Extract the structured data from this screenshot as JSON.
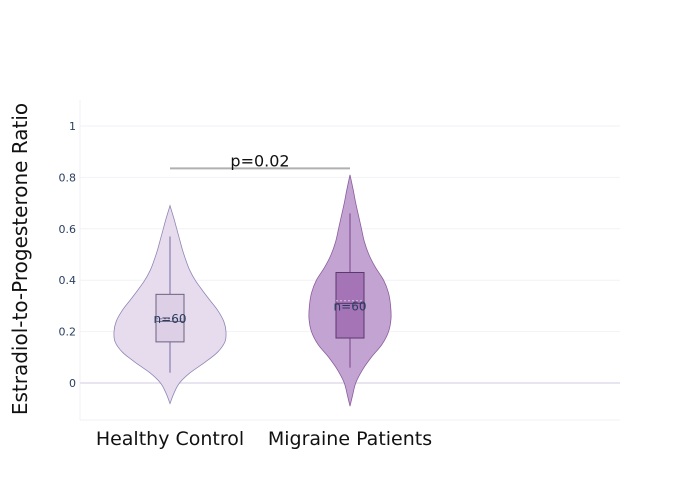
{
  "chart_data": {
    "type": "violin",
    "ylabel": "Estradiol-to-Progesterone Ratio",
    "ylim": [
      -0.14,
      1.1
    ],
    "yticks": [
      0,
      0.2,
      0.4,
      0.6,
      0.8,
      1
    ],
    "ytick_labels": [
      "0",
      "0.2",
      "0.4",
      "0.6",
      "0.8",
      "1"
    ],
    "categories": [
      "Healthy Control",
      "Migraine Patients"
    ],
    "grid": true,
    "series": [
      {
        "category": "Healthy Control",
        "fill_color": "#e7dced",
        "line_color": "#8f86b5",
        "box_fill": "#ddd0e6",
        "violin_range": [
          -0.08,
          0.69
        ],
        "density_profile": [
          [
            -0.08,
            0.0
          ],
          [
            -0.04,
            0.07
          ],
          [
            0.0,
            0.17
          ],
          [
            0.04,
            0.36
          ],
          [
            0.08,
            0.62
          ],
          [
            0.12,
            0.85
          ],
          [
            0.16,
            0.98
          ],
          [
            0.2,
            1.0
          ],
          [
            0.24,
            0.96
          ],
          [
            0.28,
            0.86
          ],
          [
            0.32,
            0.72
          ],
          [
            0.36,
            0.58
          ],
          [
            0.4,
            0.45
          ],
          [
            0.44,
            0.35
          ],
          [
            0.48,
            0.28
          ],
          [
            0.52,
            0.22
          ],
          [
            0.56,
            0.17
          ],
          [
            0.6,
            0.12
          ],
          [
            0.64,
            0.07
          ],
          [
            0.69,
            0.0
          ]
        ],
        "whisker_low": 0.04,
        "q1": 0.16,
        "median": 0.24,
        "mean": 0.25,
        "q3": 0.345,
        "whisker_high": 0.57,
        "n_label": "n=60"
      },
      {
        "category": "Migraine Patients",
        "fill_color": "#c3a3d1",
        "line_color": "#8a5c9c",
        "box_fill": "#a474b6",
        "violin_range": [
          -0.09,
          0.81
        ],
        "density_profile": [
          [
            -0.09,
            0.0
          ],
          [
            -0.05,
            0.06
          ],
          [
            0.0,
            0.14
          ],
          [
            0.05,
            0.3
          ],
          [
            0.1,
            0.52
          ],
          [
            0.15,
            0.78
          ],
          [
            0.2,
            0.94
          ],
          [
            0.25,
            1.0
          ],
          [
            0.3,
            0.99
          ],
          [
            0.35,
            0.94
          ],
          [
            0.4,
            0.82
          ],
          [
            0.45,
            0.62
          ],
          [
            0.5,
            0.46
          ],
          [
            0.55,
            0.35
          ],
          [
            0.6,
            0.28
          ],
          [
            0.65,
            0.21
          ],
          [
            0.7,
            0.14
          ],
          [
            0.75,
            0.08
          ],
          [
            0.81,
            0.0
          ]
        ],
        "whisker_low": 0.06,
        "q1": 0.175,
        "median": 0.31,
        "mean": 0.32,
        "q3": 0.43,
        "whisker_high": 0.66,
        "n_label": "n=60"
      }
    ],
    "annotations": [
      {
        "text": "p=0.02",
        "from": "Healthy Control",
        "to": "Migraine Patients",
        "y": 0.835,
        "line_color": "#b0b0b0"
      }
    ]
  }
}
